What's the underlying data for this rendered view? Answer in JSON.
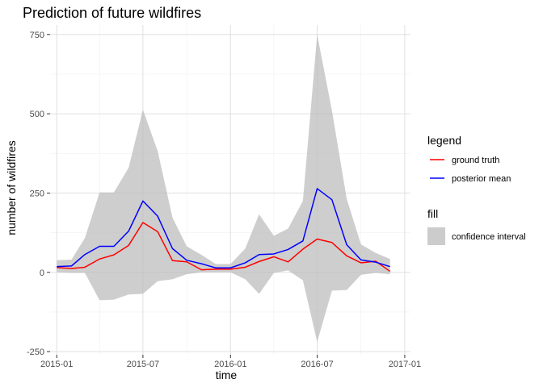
{
  "chart_data": {
    "type": "line",
    "title": "Prediction of future wildfires",
    "xlabel": "time",
    "ylabel": "number of wildfires",
    "ylim": [
      -260,
      780
    ],
    "xlim": [
      "2014-12-18",
      "2017-01-13"
    ],
    "yticks": [
      -250,
      0,
      250,
      500,
      750
    ],
    "ytick_labels": [
      "-250",
      "0",
      "250",
      "500",
      "750"
    ],
    "xticks": [
      "2015-01-01",
      "2015-07-01",
      "2016-01-01",
      "2016-07-01",
      "2017-01-01"
    ],
    "xtick_labels": [
      "2015-01",
      "2015-07",
      "2016-01",
      "2016-07",
      "2017-01"
    ],
    "grid": true,
    "legend_placement": "right",
    "x": [
      "2015-01-01",
      "2015-02-01",
      "2015-03-01",
      "2015-04-01",
      "2015-05-01",
      "2015-06-01",
      "2015-07-01",
      "2015-08-01",
      "2015-09-01",
      "2015-10-01",
      "2015-11-01",
      "2015-12-01",
      "2016-01-01",
      "2016-02-01",
      "2016-03-01",
      "2016-04-01",
      "2016-05-01",
      "2016-06-01",
      "2016-07-01",
      "2016-08-01",
      "2016-09-01",
      "2016-10-01",
      "2016-11-01",
      "2016-12-01"
    ],
    "series": [
      {
        "name": "ground truth",
        "color": "#ff0000",
        "values": [
          15,
          12,
          16,
          42,
          55,
          85,
          157,
          128,
          37,
          33,
          8,
          10,
          10,
          16,
          34,
          49,
          33,
          73,
          105,
          94,
          52,
          30,
          35,
          3
        ]
      },
      {
        "name": "posterior mean",
        "color": "#0000ff",
        "values": [
          18,
          20,
          56,
          82,
          82,
          130,
          225,
          177,
          75,
          38,
          27,
          14,
          14,
          30,
          56,
          58,
          72,
          99,
          264,
          229,
          87,
          39,
          32,
          18
        ]
      }
    ],
    "band": {
      "name": "confidence interval",
      "color": "#bebebe",
      "upper": [
        38,
        40,
        108,
        252,
        252,
        330,
        513,
        382,
        173,
        82,
        55,
        26,
        26,
        75,
        183,
        115,
        138,
        225,
        750,
        510,
        232,
        88,
        61,
        42
      ],
      "lower": [
        0,
        -2,
        -2,
        -88,
        -86,
        -70,
        -68,
        -28,
        -22,
        -6,
        0,
        0,
        0,
        -22,
        -68,
        -2,
        6,
        -25,
        -220,
        -58,
        -56,
        -8,
        -2,
        -6
      ]
    },
    "legend": {
      "title": "legend",
      "items": [
        {
          "label": "ground truth",
          "color": "#ff0000"
        },
        {
          "label": "posterior mean",
          "color": "#0000ff"
        }
      ],
      "fill_title": "fill",
      "fill_items": [
        {
          "label": "confidence interval",
          "color": "#bebebe"
        }
      ]
    }
  }
}
